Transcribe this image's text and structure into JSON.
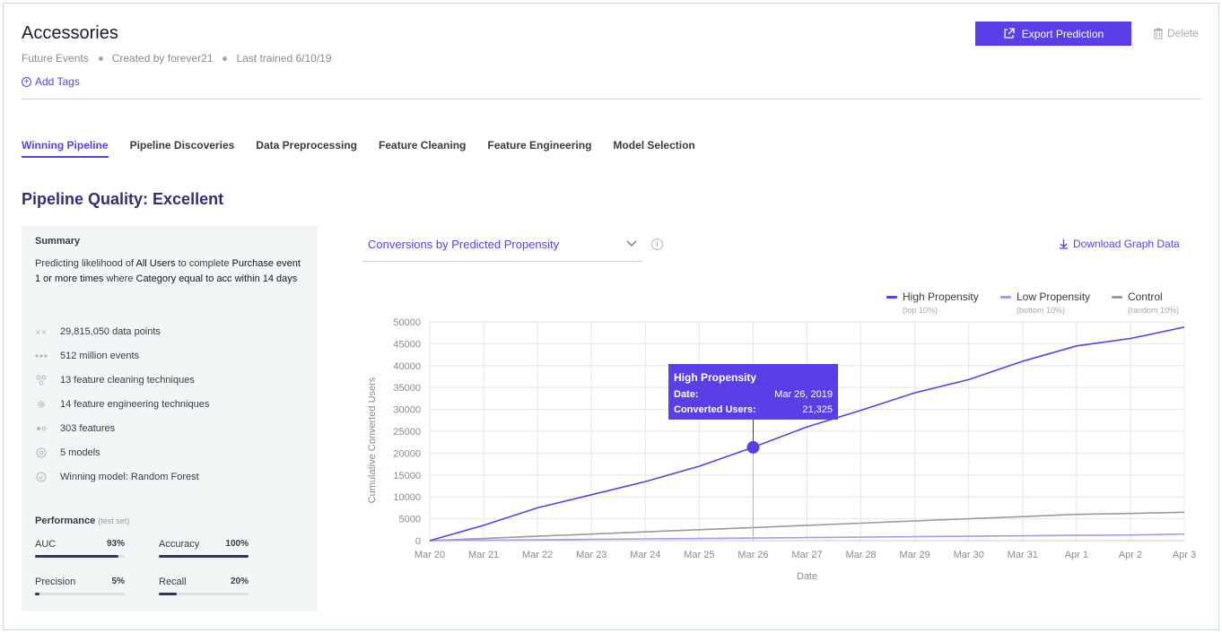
{
  "header": {
    "title": "Accessories",
    "meta": [
      "Future Events",
      "Created by forever21",
      "Last trained 6/10/19"
    ],
    "add_tags": "Add Tags",
    "export_label": "Export Prediction",
    "delete_label": "Delete"
  },
  "tabs": [
    "Winning Pipeline",
    "Pipeline Discoveries",
    "Data Preprocessing",
    "Feature Cleaning",
    "Feature Engineering",
    "Model Selection"
  ],
  "quality_title": "Pipeline Quality: Excellent",
  "summary": {
    "heading": "Summary",
    "desc_parts": [
      "Predicting likelihood of ",
      "All Users",
      " to complete ",
      "Purchase event 1 or more times",
      " where ",
      "Category equal to acc within 14 days"
    ],
    "stats": [
      {
        "icon": "data-points-icon",
        "text": "29,815,050 data points"
      },
      {
        "icon": "events-icon",
        "text": "512 million events"
      },
      {
        "icon": "cleaning-icon",
        "text": "13 feature cleaning techniques"
      },
      {
        "icon": "gear-icon",
        "text": "14 feature engineering techniques"
      },
      {
        "icon": "features-icon",
        "text": "303 features"
      },
      {
        "icon": "models-icon",
        "text": "5 models"
      },
      {
        "icon": "check-circle-icon",
        "text": "Winning model: Random Forest"
      }
    ],
    "performance_heading": "Performance",
    "performance_note": "(test set)",
    "metrics": [
      {
        "label": "AUC",
        "value": "93%",
        "fraction": 0.93
      },
      {
        "label": "Accuracy",
        "value": "100%",
        "fraction": 1.0
      },
      {
        "label": "Precision",
        "value": "5%",
        "fraction": 0.05
      },
      {
        "label": "Recall",
        "value": "20%",
        "fraction": 0.2
      }
    ]
  },
  "chart_panel": {
    "selector_label": "Conversions by Predicted Propensity",
    "info": "i",
    "download_label": "Download Graph Data",
    "legend": [
      {
        "name": "High Propensity",
        "sub": "(top 10%)",
        "color": "#5b3fe6"
      },
      {
        "name": "Low Propensity",
        "sub": "(bottom 10%)",
        "color": "#a898f3"
      },
      {
        "name": "Control",
        "sub": "(random 10%)",
        "color": "#9a9a9a"
      }
    ],
    "tooltip": {
      "title": "High Propensity",
      "rows": [
        {
          "label": "Date:",
          "value": "Mar 26, 2019"
        },
        {
          "label": "Converted Users:",
          "value": "21,325"
        }
      ]
    }
  },
  "chart_data": {
    "type": "line",
    "x": [
      "Mar 20",
      "Mar 21",
      "Mar 22",
      "Mar 23",
      "Mar 24",
      "Mar 25",
      "Mar 26",
      "Mar 27",
      "Mar 28",
      "Mar 29",
      "Mar 30",
      "Mar 31",
      "Apr 1",
      "Apr 2",
      "Apr 3"
    ],
    "xlabel": "Date",
    "ylabel": "Cumulative Converted Users",
    "ylim": [
      0,
      50000
    ],
    "yticks": [
      0,
      5000,
      10000,
      15000,
      20000,
      25000,
      30000,
      35000,
      40000,
      45000,
      50000
    ],
    "grid": true,
    "series": [
      {
        "name": "High Propensity",
        "color": "#5b3fe6",
        "values": [
          0,
          3500,
          7500,
          10500,
          13500,
          17000,
          21325,
          26000,
          29800,
          33800,
          36800,
          41000,
          44500,
          46200,
          48800
        ]
      },
      {
        "name": "Low Propensity",
        "color": "#a898f3",
        "values": [
          0,
          100,
          200,
          300,
          400,
          500,
          600,
          700,
          800,
          900,
          1000,
          1100,
          1200,
          1300,
          1500
        ]
      },
      {
        "name": "Control",
        "color": "#9a9a9a",
        "values": [
          0,
          500,
          1000,
          1500,
          2000,
          2500,
          3000,
          3500,
          4000,
          4500,
          5000,
          5500,
          6000,
          6200,
          6500
        ]
      }
    ],
    "highlight": {
      "series": "High Propensity",
      "x": "Mar 26",
      "y": 21325
    }
  }
}
